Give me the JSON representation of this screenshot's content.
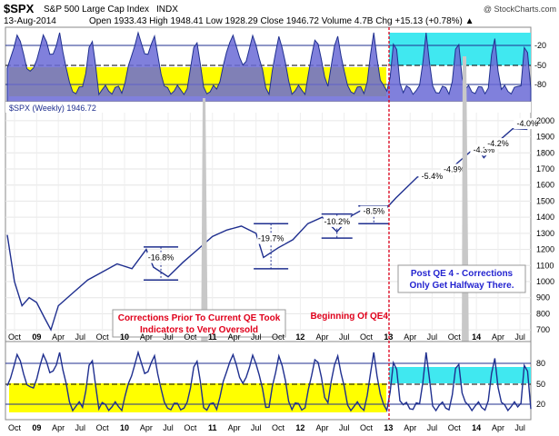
{
  "header": {
    "symbol": "$SPX",
    "name": "S&P 500 Large Cap Index",
    "exchange": "INDX",
    "date": "13-Aug-2014",
    "quote": "Open 1933.43  High 1948.41  Low 1928.29  Close 1946.72  Volume 4.7B  Chg +15.13 (+0.78%) ▲",
    "watermark": "@ StockCharts.com"
  },
  "top_panel": {
    "ticks": [
      "-20",
      "-50",
      "-80"
    ]
  },
  "main_panel": {
    "legend": "$SPX (Weekly) 1946.72",
    "ticks": [
      "2000",
      "1900",
      "1800",
      "1700",
      "1600",
      "1500",
      "1400",
      "1300",
      "1200",
      "1100",
      "1000",
      "900",
      "800",
      "700"
    ]
  },
  "bottom_panel": {
    "ticks": [
      "80",
      "50",
      "20"
    ]
  },
  "x_axis": {
    "labels": [
      "Oct",
      "09",
      "Apr",
      "Jul",
      "Oct",
      "10",
      "Apr",
      "Jul",
      "Oct",
      "11",
      "Apr",
      "Jul",
      "Oct",
      "12",
      "Apr",
      "Jul",
      "Oct",
      "13",
      "Apr",
      "Jul",
      "Oct",
      "14",
      "Apr",
      "Jul"
    ]
  },
  "annotations": {
    "corrections_prior": "Corrections Prior To Current QE Took Indicators to Very Oversold",
    "beginning_qe4": "Beginning Of QE4",
    "post_qe4": "Post QE 4 - Corrections Only Get Halfway There."
  },
  "colors": {
    "price_line": "#1f2f8f",
    "accent_red": "#e0001b",
    "yellow_zone": "#ffff00",
    "cyan_zone": "#40e8f0",
    "oscillator_fill": "#6a6ad6",
    "blue_text": "#2424d0"
  },
  "chart_data": {
    "type": "line",
    "title": "$SPX S&P 500 Large Cap Index INDX",
    "ylabel": "",
    "ylim": [
      650,
      2050
    ],
    "x": [
      "2008-09",
      "2008-10",
      "2008-11",
      "2008-12",
      "2009-01",
      "2009-02",
      "2009-03",
      "2009-04",
      "2009-06",
      "2009-08",
      "2009-10",
      "2009-12",
      "2010-02",
      "2010-04",
      "2010-05",
      "2010-07",
      "2010-09",
      "2010-11",
      "2011-01",
      "2011-03",
      "2011-05",
      "2011-07",
      "2011-08",
      "2011-10",
      "2011-12",
      "2012-02",
      "2012-04",
      "2012-06",
      "2012-08",
      "2012-10",
      "2012-12",
      "2013-02",
      "2013-05",
      "2013-08",
      "2013-10",
      "2014-01",
      "2014-02",
      "2014-04",
      "2014-06",
      "2014-08"
    ],
    "series": [
      {
        "name": "$SPX (Weekly) 1946.72",
        "values": [
          1290,
          1000,
          850,
          900,
          870,
          780,
          700,
          850,
          930,
          1010,
          1060,
          1110,
          1080,
          1200,
          1090,
          1030,
          1120,
          1200,
          1280,
          1320,
          1345,
          1300,
          1150,
          1210,
          1260,
          1360,
          1400,
          1310,
          1410,
          1460,
          1420,
          1520,
          1650,
          1670,
          1720,
          1840,
          1770,
          1870,
          1950,
          1946
        ]
      }
    ],
    "corrections": [
      {
        "label": "-16.8%",
        "x": "2010-06"
      },
      {
        "label": "-19.7%",
        "x": "2011-09"
      },
      {
        "label": "-10.2%",
        "x": "2012-06"
      },
      {
        "label": "-8.5%",
        "x": "2012-11"
      },
      {
        "label": "-5.4%",
        "x": "2013-07"
      },
      {
        "label": "-4.9%",
        "x": "2013-10"
      },
      {
        "label": "-4.3%",
        "x": "2014-02"
      },
      {
        "label": "-4.2%",
        "x": "2014-04"
      },
      {
        "label": "-4.0%",
        "x": "2014-08"
      }
    ],
    "grid": true,
    "legend": "top-left"
  }
}
